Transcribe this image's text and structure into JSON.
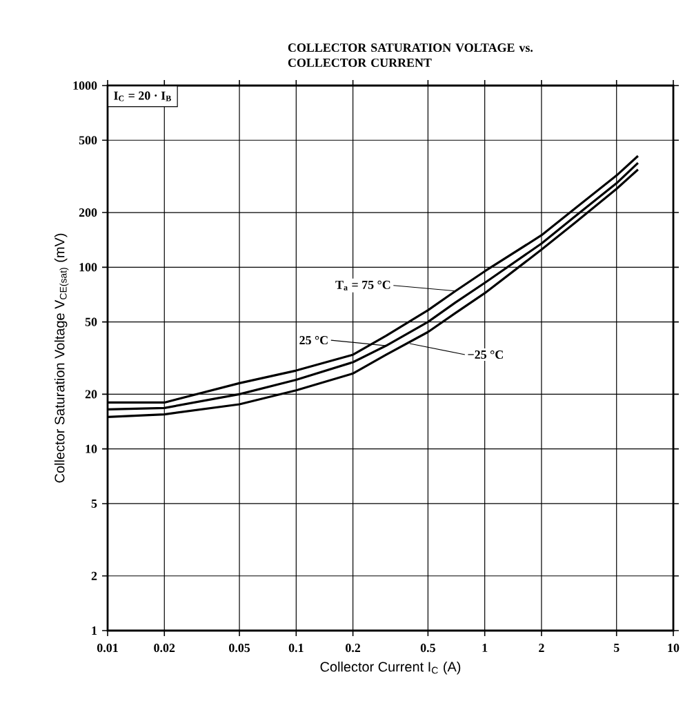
{
  "chart_data": {
    "type": "line",
    "title": "COLLECTOR SATURATION VOLTAGE vs. COLLECTOR CURRENT",
    "xlabel": "Collector Current  I$_{C}$ (A)",
    "ylabel": "Collector Saturation Voltage  V$_{CE(sat)}$ (mV)",
    "log": "xy",
    "grid": true,
    "marker": "none",
    "line_style": "solid",
    "xlim": [
      0.01,
      10
    ],
    "ylim": [
      1,
      1000
    ],
    "xticks": [
      0.01,
      0.02,
      0.05,
      0.1,
      0.2,
      0.5,
      1,
      2,
      5,
      10
    ],
    "yticks": [
      1,
      2,
      5,
      10,
      20,
      50,
      100,
      200,
      500,
      1000
    ],
    "x": [
      0.01,
      0.02,
      0.05,
      0.1,
      0.2,
      0.3,
      0.5,
      0.7,
      1,
      2,
      3,
      5,
      6.5
    ],
    "series": [
      {
        "color": "#000000",
        "values": [
          18,
          18,
          23,
          27,
          33,
          42,
          58,
          74,
          95,
          150,
          210,
          320,
          410
        ]
      },
      {
        "color": "#000000",
        "values": [
          16.5,
          16.8,
          20,
          24,
          30,
          37,
          50,
          64,
          82,
          135,
          190,
          290,
          375
        ]
      },
      {
        "color": "#000000",
        "values": [
          15,
          15.5,
          17.6,
          21,
          26,
          33,
          44,
          56,
          72,
          125,
          175,
          270,
          345
        ]
      }
    ],
    "annotations": [
      "I$_{C}$ = 20 · I$_{B}$",
      {
        "text": "T$_{a}$ = 75 °C",
        "x": 0.7,
        "y": 74
      },
      {
        "text": "25 °C",
        "x": 0.3,
        "y": 37
      },
      {
        "text": "−25 °C",
        "x": 0.4,
        "y": 38
      }
    ]
  }
}
